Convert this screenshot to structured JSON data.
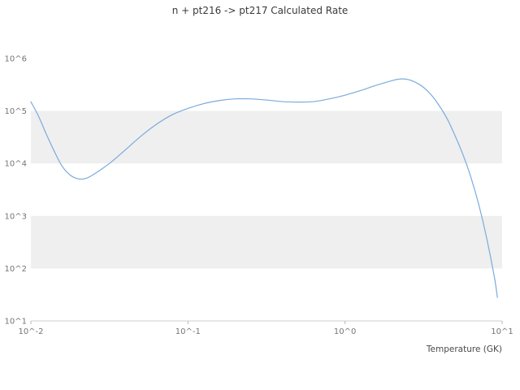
{
  "chart_data": {
    "type": "line",
    "title": "n + pt216 -> pt217 Calculated Rate",
    "xlabel": "Temperature (GK)",
    "ylabel": "",
    "x_scale": "log",
    "y_scale": "log",
    "xlim": [
      0.01,
      10
    ],
    "ylim": [
      10,
      1000000
    ],
    "x_tick_labels": [
      "10^-2",
      "10^-1",
      "10^0",
      "10^1"
    ],
    "x_tick_values": [
      0.01,
      0.1,
      1,
      10
    ],
    "y_tick_labels": [
      "10^1",
      "10^2",
      "10^3",
      "10^4",
      "10^5",
      "10^6"
    ],
    "y_tick_values": [
      10,
      100,
      1000,
      10000,
      100000,
      1000000
    ],
    "grid": "horizontal-bands",
    "legend": "none",
    "line_color": "#7aabdc",
    "band_color": "#efefef",
    "spine_color": "#cfcfcf",
    "tick_mark_color": "#b7b7b7",
    "series": [
      {
        "name": "calculated rate",
        "x": [
          0.01,
          0.0112,
          0.0126,
          0.0141,
          0.0158,
          0.0178,
          0.02,
          0.0224,
          0.0251,
          0.0316,
          0.0398,
          0.0501,
          0.0631,
          0.0794,
          0.1,
          0.126,
          0.158,
          0.2,
          0.251,
          0.316,
          0.398,
          0.501,
          0.631,
          0.794,
          1.0,
          1.26,
          1.58,
          2.0,
          2.24,
          2.51,
          2.82,
          3.16,
          3.55,
          3.98,
          4.47,
          5.01,
          5.62,
          6.31,
          7.08,
          7.94,
          8.91,
          9.33
        ],
        "y": [
          150000,
          79000,
          35000,
          17000,
          8900,
          6000,
          5100,
          5200,
          6200,
          10000,
          18000,
          33000,
          56000,
          85000,
          112000,
          138000,
          158000,
          170000,
          170000,
          162000,
          151000,
          148000,
          151000,
          170000,
          200000,
          246000,
          309000,
          380000,
          407000,
          398000,
          350000,
          282000,
          200000,
          126000,
          71000,
          34000,
          15000,
          5600,
          1700,
          400,
          71,
          28
        ]
      }
    ]
  }
}
